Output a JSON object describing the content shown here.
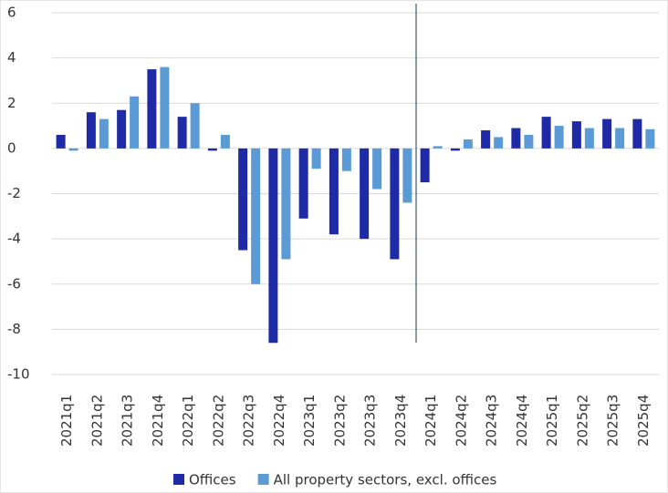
{
  "chart_data": {
    "type": "bar",
    "categories": [
      "2021q1",
      "2021q2",
      "2021q3",
      "2021q4",
      "2022q1",
      "2022q2",
      "2022q3",
      "2022q4",
      "2023q1",
      "2023q2",
      "2023q3",
      "2023q4",
      "2024q1",
      "2024q2",
      "2024q3",
      "2024q4",
      "2025q1",
      "2025q2",
      "2025q3",
      "2025q4"
    ],
    "series": [
      {
        "name": "Offices",
        "color": "#1f2aa6",
        "values": [
          0.6,
          1.6,
          1.7,
          3.5,
          1.4,
          -0.1,
          -4.5,
          -8.6,
          -3.1,
          -3.8,
          -4.0,
          -4.9,
          -1.5,
          -0.1,
          0.8,
          0.9,
          1.4,
          1.2,
          1.3,
          1.3
        ]
      },
      {
        "name": "All property sectors, excl. offices",
        "color": "#5b9bd5",
        "values": [
          -0.1,
          1.3,
          2.3,
          3.6,
          2.0,
          0.6,
          -6.0,
          -4.9,
          -0.9,
          -1.0,
          -1.8,
          -2.4,
          0.1,
          0.4,
          0.5,
          0.6,
          1.0,
          0.9,
          0.9,
          0.85
        ]
      }
    ],
    "ylim": [
      -10,
      6
    ],
    "yticks": [
      -10,
      -8,
      -6,
      -4,
      -2,
      0,
      2,
      4,
      6
    ],
    "grid": true,
    "legend": "bottom"
  }
}
